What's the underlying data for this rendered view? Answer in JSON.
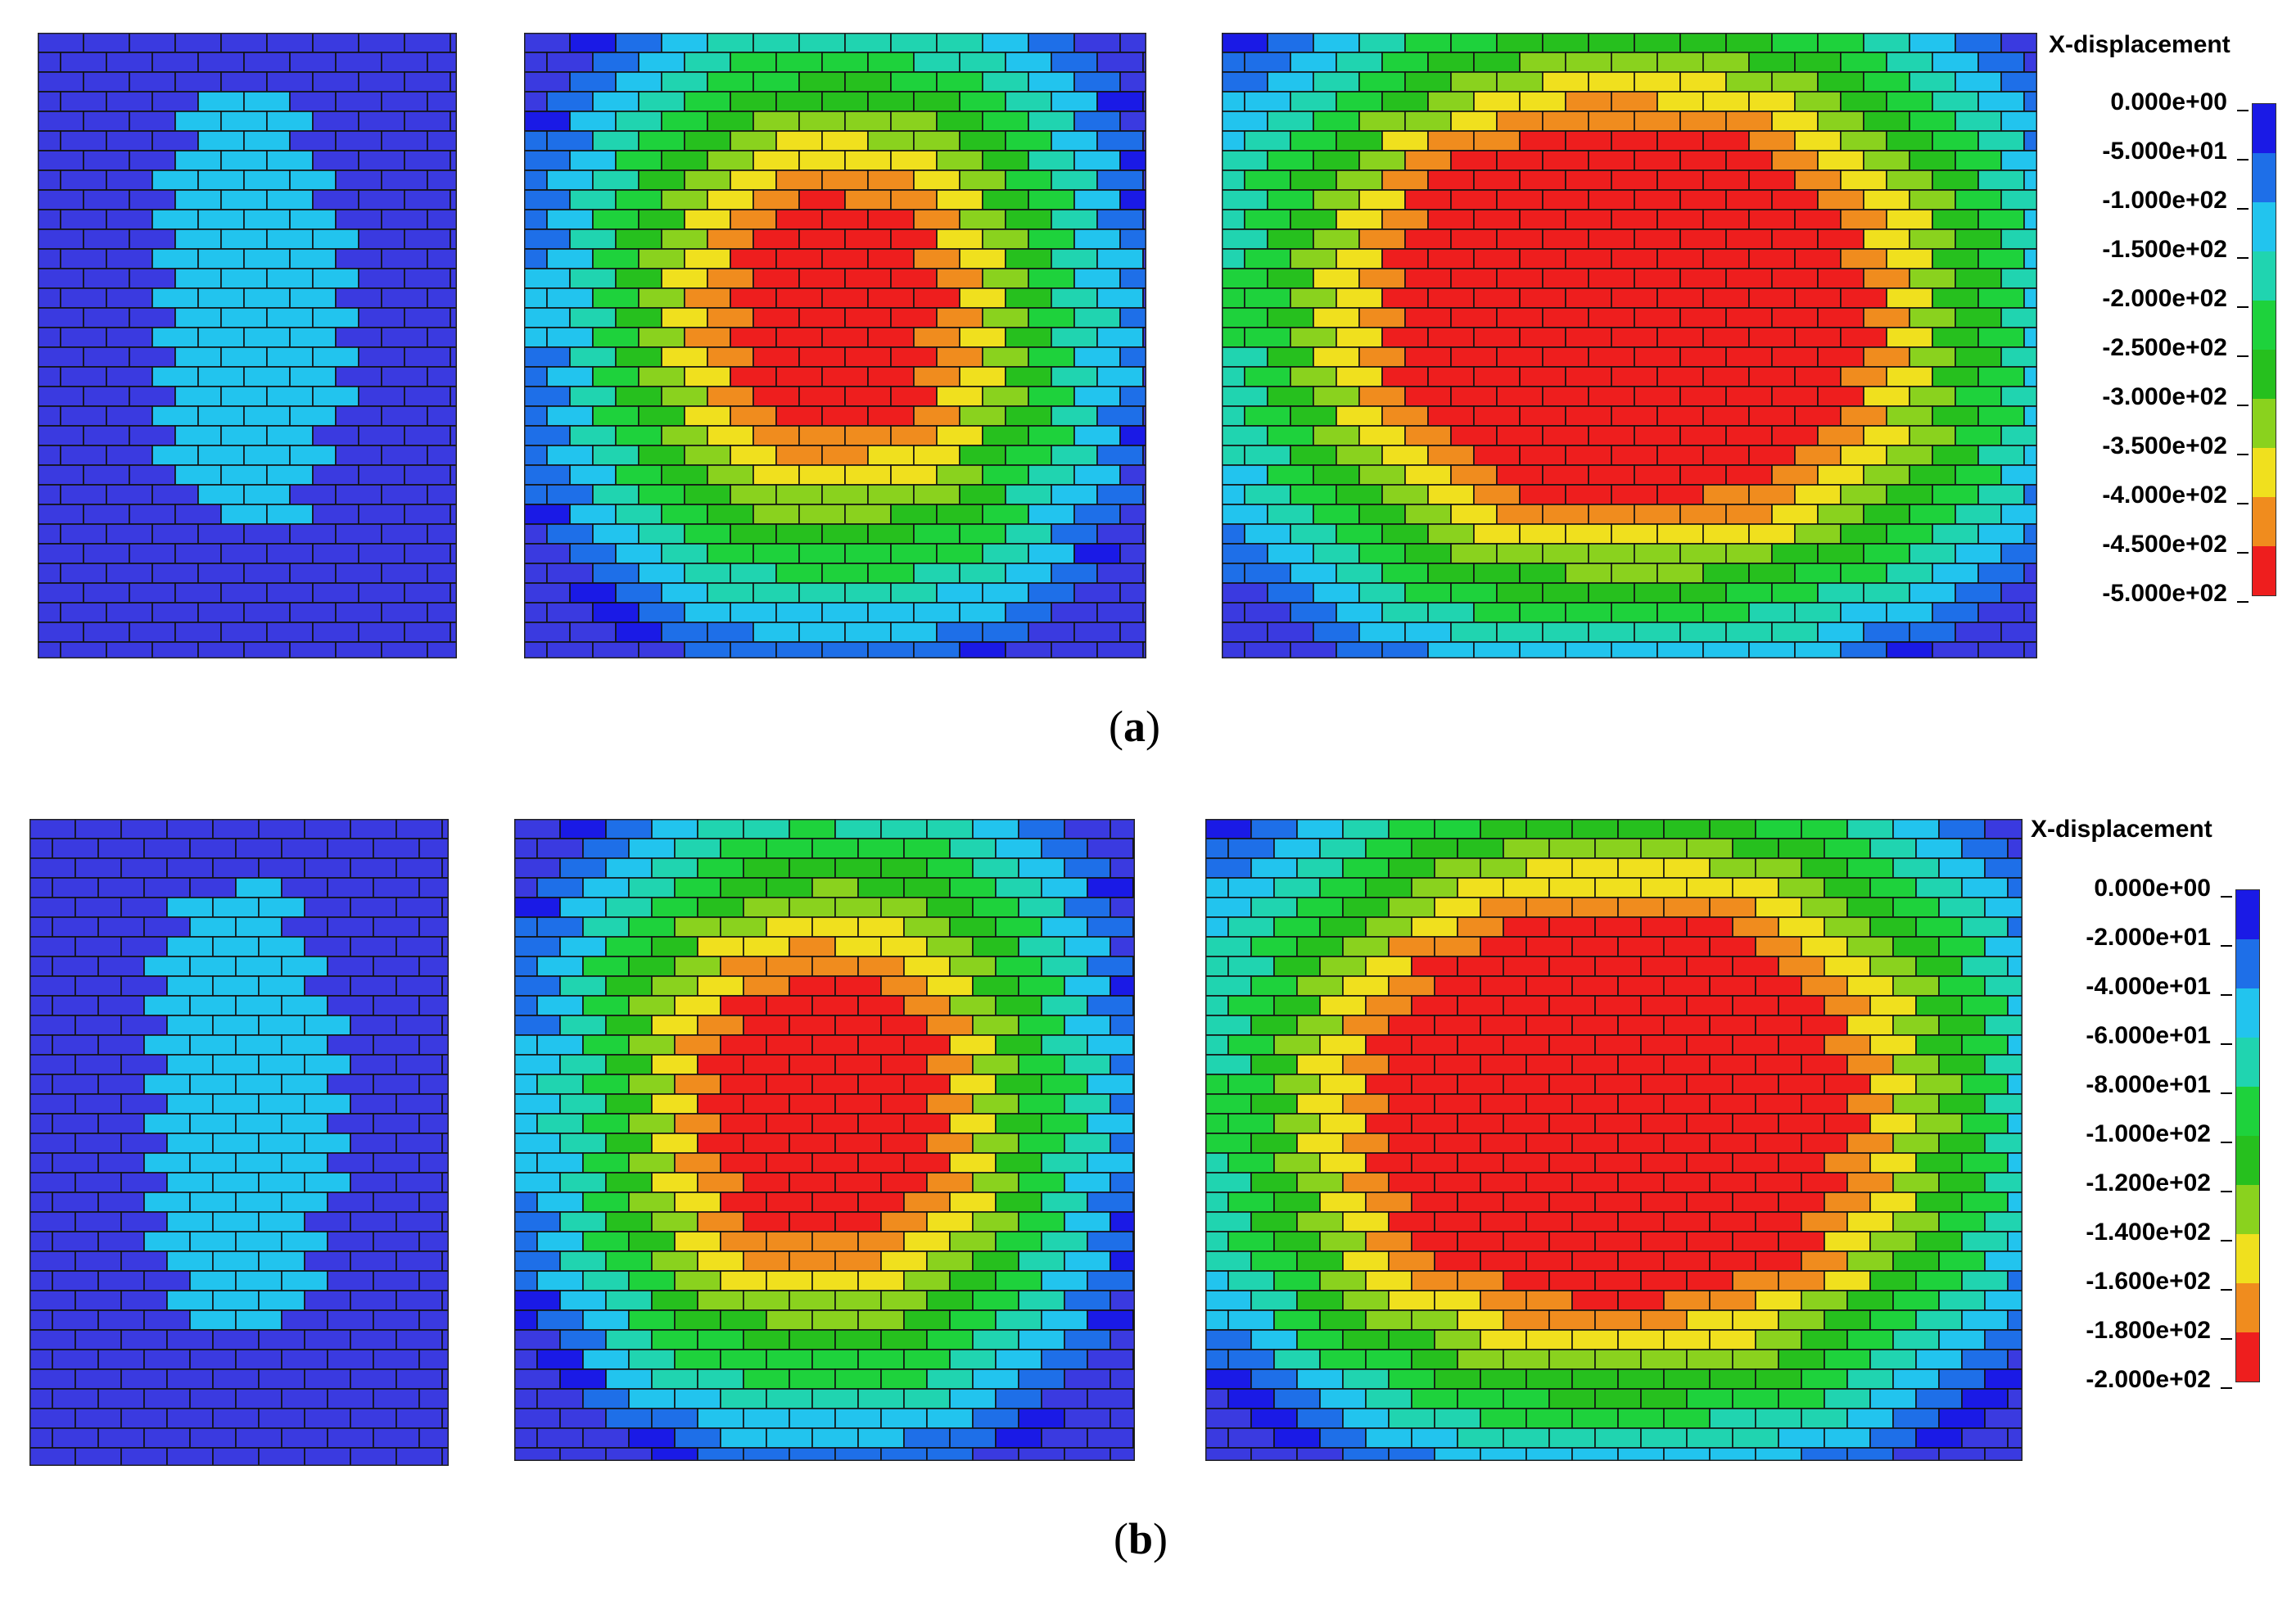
{
  "figure": {
    "row_a": {
      "caption_letter": "a",
      "legend": {
        "title": "X-displacement",
        "labels": [
          "0.000e+00",
          "-5.000e+01",
          "-1.000e+02",
          "-1.500e+02",
          "-2.000e+02",
          "-2.500e+02",
          "-3.000e+02",
          "-3.500e+02",
          "-4.000e+02",
          "-4.500e+02",
          "-5.000e+02"
        ]
      },
      "panels": [
        {
          "stage": 1,
          "intensity": 0.25
        },
        {
          "stage": 2,
          "intensity": 0.85
        },
        {
          "stage": 3,
          "intensity": 1.0
        }
      ]
    },
    "row_b": {
      "caption_letter": "b",
      "legend": {
        "title": "X-displacement",
        "labels": [
          "0.000e+00",
          "-2.000e+01",
          "-4.000e+01",
          "-6.000e+01",
          "-8.000e+01",
          "-1.000e+02",
          "-1.200e+02",
          "-1.400e+02",
          "-1.600e+02",
          "-1.800e+02",
          "-2.000e+02"
        ]
      },
      "panels": [
        {
          "stage": 1,
          "intensity": 0.2
        },
        {
          "stage": 2,
          "intensity": 0.9
        },
        {
          "stage": 3,
          "intensity": 1.0
        }
      ]
    },
    "colors": {
      "scale": [
        "#1a1ae6",
        "#1e6fe8",
        "#22c4ee",
        "#20d4b0",
        "#1ed23c",
        "#26c01e",
        "#8ad21e",
        "#f0e01e",
        "#f08c1e",
        "#ee1e1e"
      ],
      "base_blue": "#3a3ae0",
      "mortar": "#111111"
    }
  }
}
